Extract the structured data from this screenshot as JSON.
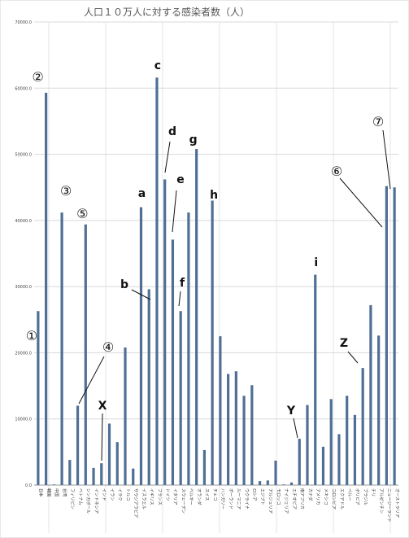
{
  "chart_data": {
    "type": "bar",
    "title": "人口１０万人に対する感染者数（人）",
    "xlabel": "",
    "ylabel": "",
    "ylim": [
      0,
      70000
    ],
    "yticks": [
      "0.0",
      "10000.0",
      "20000.0",
      "30000.0",
      "40000.0",
      "50000.0",
      "60000.0",
      "70000.0"
    ],
    "grid": true,
    "legend": "none",
    "bar_color": "#4f6f95",
    "categories": [
      "日本",
      "韓国",
      "中国",
      "台湾",
      "フィリピン",
      "ベトナム",
      "シンガポール",
      "インドネシア",
      "インド",
      "イラン",
      "イラク",
      "トルコ",
      "サウジアラビア",
      "イスラエル",
      "イギリス",
      "フランス",
      "ドイツ",
      "イタリア",
      "スウェーデン",
      "ベルギー",
      "オランダ",
      "スイス",
      "チェコ",
      "ハンガリー",
      "ポーランド",
      "ルーマニア",
      "ウクライナ",
      "ロシア",
      "エジプト",
      "アルジェリア",
      "モロッコ",
      "ナイジェリア",
      "エチオピア",
      "南アフリカ",
      "カナダ",
      "アメリカ",
      "メキシコ",
      "コロンビア",
      "エクアドル",
      "ペルー",
      "ボリビア",
      "ブラジル",
      "チリ",
      "アルゼンチン",
      "ニュージーランド",
      "オーストラリア"
    ],
    "values": [
      26300,
      59300,
      100,
      41200,
      3800,
      12000,
      39400,
      2600,
      3300,
      9300,
      6500,
      20800,
      2500,
      42000,
      29600,
      61600,
      46200,
      37100,
      26300,
      41200,
      50800,
      5300,
      43000,
      22500,
      16800,
      17200,
      13500,
      15100,
      600,
      700,
      3700,
      100,
      400,
      7000,
      12100,
      31800,
      5800,
      13000,
      7700,
      13500,
      10600,
      17700,
      27200,
      22600,
      45200,
      45000
    ],
    "annotations": [
      {
        "label": "①",
        "category": "日本"
      },
      {
        "label": "②",
        "category": "韓国"
      },
      {
        "label": "③",
        "category": "台湾"
      },
      {
        "label": "④",
        "category": "ベトナム"
      },
      {
        "label": "⑤",
        "category": "シンガポール"
      },
      {
        "label": "X",
        "category": "インド"
      },
      {
        "label": "a",
        "category": "イスラエル"
      },
      {
        "label": "b",
        "category": "イギリス"
      },
      {
        "label": "c",
        "category": "フランス"
      },
      {
        "label": "d",
        "category": "ドイツ"
      },
      {
        "label": "e",
        "category": "イタリア"
      },
      {
        "label": "f",
        "category": "スウェーデン"
      },
      {
        "label": "g",
        "category": "オランダ"
      },
      {
        "label": "h",
        "category": "チェコ"
      },
      {
        "label": "Y",
        "category": "南アフリカ"
      },
      {
        "label": "i",
        "category": "アメリカ"
      },
      {
        "label": "Z",
        "category": "ブラジル"
      },
      {
        "label": "⑥",
        "category": "ニュージーランド"
      },
      {
        "label": "⑦",
        "category": "オーストラリア"
      }
    ]
  }
}
